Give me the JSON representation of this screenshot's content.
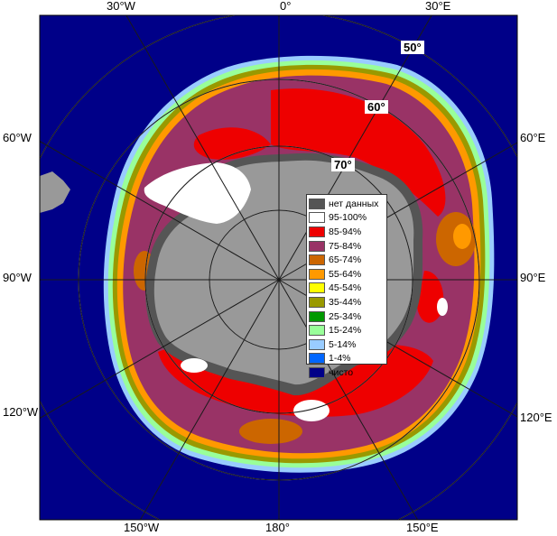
{
  "colors": {
    "ocean": "#000088",
    "land": "#999999",
    "land_dark": "#555555",
    "grid": "#c8c8c8",
    "c95": "#ffffff",
    "c85": "#ee0000",
    "c75": "#993366",
    "c65": "#cc6600",
    "c55": "#ff9900",
    "c45": "#ffff00",
    "c35": "#999900",
    "c25": "#009900",
    "c15": "#99ff99",
    "c5": "#99ccff",
    "c1": "#0066ff"
  },
  "labels": {
    "top": [
      "30°W",
      "0°",
      "30°E"
    ],
    "bottom": [
      "150°W",
      "180°",
      "150°E"
    ],
    "left": [
      "60°W",
      "90°W",
      "120°W"
    ],
    "right": [
      "60°E",
      "90°E",
      "120°E"
    ],
    "lat": [
      "50°",
      "60°",
      "70°"
    ]
  },
  "legend": [
    {
      "label": "нет данных",
      "color": "#555555"
    },
    {
      "label": "95-100%",
      "color": "#ffffff"
    },
    {
      "label": "85-94%",
      "color": "#ee0000"
    },
    {
      "label": "75-84%",
      "color": "#993366"
    },
    {
      "label": "65-74%",
      "color": "#cc6600"
    },
    {
      "label": "55-64%",
      "color": "#ff9900"
    },
    {
      "label": "45-54%",
      "color": "#ffff00"
    },
    {
      "label": "35-44%",
      "color": "#999900"
    },
    {
      "label": "25-34%",
      "color": "#009900"
    },
    {
      "label": "15-24%",
      "color": "#99ff99"
    },
    {
      "label": "5-14%",
      "color": "#99ccff"
    },
    {
      "label": "1-4%",
      "color": "#0066ff"
    },
    {
      "label": "чисто",
      "color": "#000088"
    }
  ]
}
